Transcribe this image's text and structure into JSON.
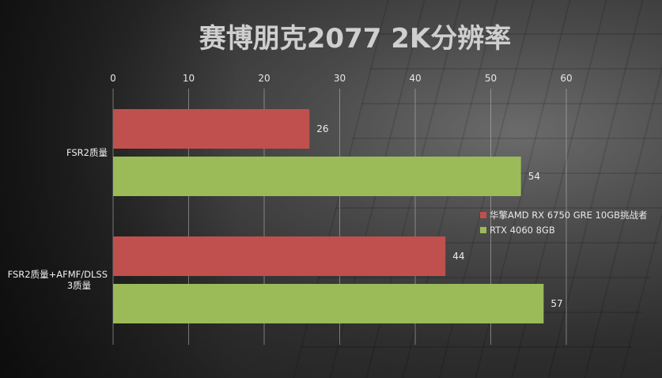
{
  "chart_data": {
    "type": "bar",
    "orientation": "horizontal",
    "title": "赛博朋克2077 2K分辨率",
    "categories": [
      "FSR2质量",
      "FSR2质量+AFMF/DLSS 3质量"
    ],
    "series": [
      {
        "name": "华擎AMD RX 6750 GRE 10GB挑战者",
        "color": "#c0504d",
        "values": [
          26,
          44
        ]
      },
      {
        "name": "RTX 4060 8GB",
        "color": "#9bbb59",
        "values": [
          54,
          57
        ]
      }
    ],
    "xlim": [
      0,
      60
    ],
    "xticks": [
      0,
      10,
      20,
      30,
      40,
      50,
      60
    ],
    "xaxis_position": "top",
    "grid": true,
    "legend_position": "right"
  }
}
